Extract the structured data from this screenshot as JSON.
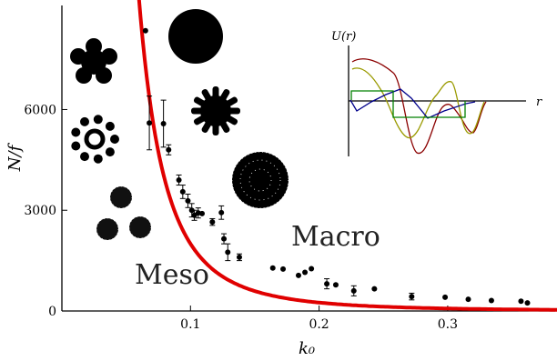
{
  "chart_data": {
    "type": "scatter",
    "title": "",
    "xlabel": "k₀",
    "ylabel": "N/f",
    "xlim": [
      0.0,
      0.385
    ],
    "ylim": [
      0,
      9100
    ],
    "x_ticks": [
      {
        "value": 0.1,
        "label": "0.1"
      },
      {
        "value": 0.2,
        "label": "0.2"
      },
      {
        "value": 0.3,
        "label": "0.3"
      }
    ],
    "y_ticks": [
      {
        "value": 0,
        "label": "0"
      },
      {
        "value": 3000,
        "label": "3000"
      },
      {
        "value": 6000,
        "label": "6000"
      }
    ],
    "points": [
      {
        "x": 0.065,
        "y": 8350,
        "err": 0
      },
      {
        "x": 0.068,
        "y": 5600,
        "err": 800
      },
      {
        "x": 0.079,
        "y": 5580,
        "err": 700
      },
      {
        "x": 0.083,
        "y": 4800,
        "err": 150
      },
      {
        "x": 0.091,
        "y": 3900,
        "err": 150
      },
      {
        "x": 0.094,
        "y": 3550,
        "err": 200
      },
      {
        "x": 0.098,
        "y": 3280,
        "err": 200
      },
      {
        "x": 0.101,
        "y": 3000,
        "err": 200
      },
      {
        "x": 0.103,
        "y": 2850,
        "err": 150
      },
      {
        "x": 0.106,
        "y": 2920,
        "err": 150
      },
      {
        "x": 0.109,
        "y": 2900,
        "err": 0
      },
      {
        "x": 0.117,
        "y": 2650,
        "err": 100
      },
      {
        "x": 0.124,
        "y": 2930,
        "err": 200
      },
      {
        "x": 0.126,
        "y": 2150,
        "err": 150
      },
      {
        "x": 0.129,
        "y": 1750,
        "err": 250
      },
      {
        "x": 0.138,
        "y": 1600,
        "err": 100
      },
      {
        "x": 0.164,
        "y": 1280,
        "err": 0
      },
      {
        "x": 0.172,
        "y": 1250,
        "err": 0
      },
      {
        "x": 0.184,
        "y": 1060,
        "err": 0
      },
      {
        "x": 0.189,
        "y": 1150,
        "err": 0
      },
      {
        "x": 0.194,
        "y": 1260,
        "err": 0
      },
      {
        "x": 0.206,
        "y": 810,
        "err": 150
      },
      {
        "x": 0.213,
        "y": 780,
        "err": 0
      },
      {
        "x": 0.227,
        "y": 600,
        "err": 150
      },
      {
        "x": 0.243,
        "y": 660,
        "err": 0
      },
      {
        "x": 0.272,
        "y": 430,
        "err": 100
      },
      {
        "x": 0.298,
        "y": 410,
        "err": 0
      },
      {
        "x": 0.316,
        "y": 350,
        "err": 0
      },
      {
        "x": 0.334,
        "y": 310,
        "err": 0
      },
      {
        "x": 0.357,
        "y": 290,
        "err": 0
      },
      {
        "x": 0.362,
        "y": 240,
        "err": 0
      }
    ],
    "fit_curve": {
      "form": "a / k0^3",
      "a": 2.0,
      "x_start": 0.0595,
      "x_end": 0.385
    },
    "fit_color": "#e00000",
    "point_color": "#000000",
    "regions": [
      {
        "label": "Meso"
      },
      {
        "label": "Macro"
      }
    ],
    "inset": {
      "ylabel": "U(r)",
      "xlabel": "r",
      "curve_colors": [
        "#8b0000",
        "#9a9a00",
        "#00008b",
        "#008000"
      ]
    },
    "grid": false,
    "legend": "none"
  }
}
